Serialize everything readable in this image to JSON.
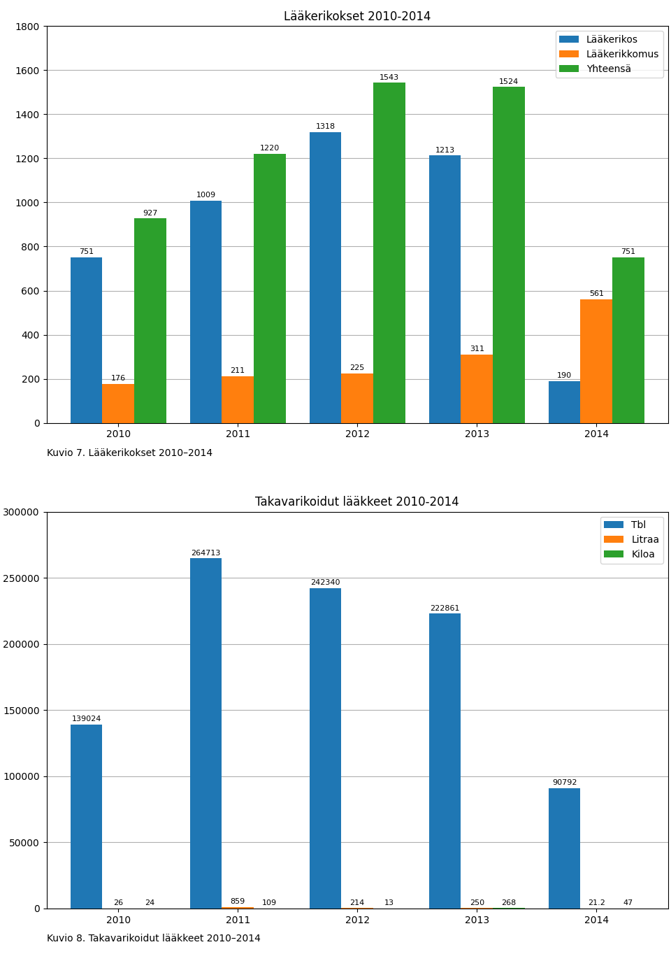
{
  "chart_data": [
    {
      "type": "bar",
      "title": "Lääkerikokset 2010-2014",
      "categories": [
        "2010",
        "2011",
        "2012",
        "2013",
        "2014"
      ],
      "series": [
        {
          "name": "Lääkerikos",
          "values": [
            751,
            1009,
            1318,
            1213,
            190
          ]
        },
        {
          "name": "Lääkerikkomus",
          "values": [
            176,
            211,
            225,
            311,
            561
          ]
        },
        {
          "name": "Yhteensä",
          "values": [
            927,
            1220,
            1543,
            1524,
            751
          ]
        }
      ],
      "ylim": [
        0,
        1800
      ],
      "yticks": [
        0,
        200,
        400,
        600,
        800,
        1000,
        1200,
        1400,
        1600,
        1800
      ],
      "grid": true,
      "legend": "upper right",
      "data_labels": true,
      "annotations": [
        "Kuvio 7. Lääkerikokset 2010–2014"
      ]
    },
    {
      "type": "bar",
      "title": "Takavarikoidut lääkkeet 2010-2014",
      "categories": [
        "2010",
        "2011",
        "2012",
        "2013",
        "2014"
      ],
      "series": [
        {
          "name": "Tbl",
          "values": [
            139024,
            264713,
            242340,
            222861,
            90792
          ]
        },
        {
          "name": "Litraa",
          "values": [
            26,
            859,
            214,
            250,
            21.2
          ]
        },
        {
          "name": "Kiloa",
          "values": [
            24,
            109,
            13,
            268,
            47
          ]
        }
      ],
      "ylim": [
        0,
        300000
      ],
      "yticks": [
        0,
        50000,
        100000,
        150000,
        200000,
        250000,
        300000
      ],
      "grid": true,
      "legend": "upper right",
      "data_labels": true,
      "annotations": [
        "Kuvio 8. Takavarikoidut lääkkeet 2010–2014"
      ]
    }
  ]
}
